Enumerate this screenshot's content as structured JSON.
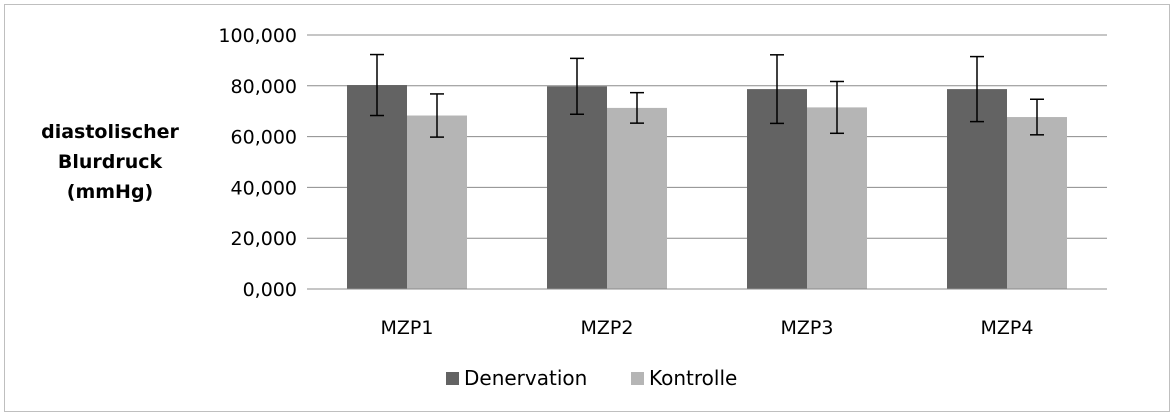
{
  "chart_data": {
    "type": "bar",
    "title": "",
    "categories": [
      "MZP1",
      "MZP2",
      "MZP3",
      "MZP4"
    ],
    "series": [
      {
        "name": "Denervation",
        "color": "#636363",
        "values": [
          80.3,
          79.8,
          78.7,
          78.7
        ],
        "error": [
          12.0,
          11.0,
          13.5,
          12.8
        ]
      },
      {
        "name": "Kontrolle",
        "color": "#b5b5b5",
        "values": [
          68.3,
          71.3,
          71.5,
          67.7
        ],
        "error": [
          8.5,
          6.0,
          10.2,
          7.0
        ]
      }
    ],
    "ylabel_lines": [
      "diastolischer",
      "Blurdruck",
      "(mmHg)"
    ],
    "ylim": [
      0,
      100
    ],
    "yticks": [
      0,
      20,
      40,
      60,
      80,
      100
    ],
    "ytick_labels": [
      "0,000",
      "20,000",
      "40,000",
      "60,000",
      "80,000",
      "100,000"
    ],
    "grid": true,
    "legend": "bottom"
  }
}
